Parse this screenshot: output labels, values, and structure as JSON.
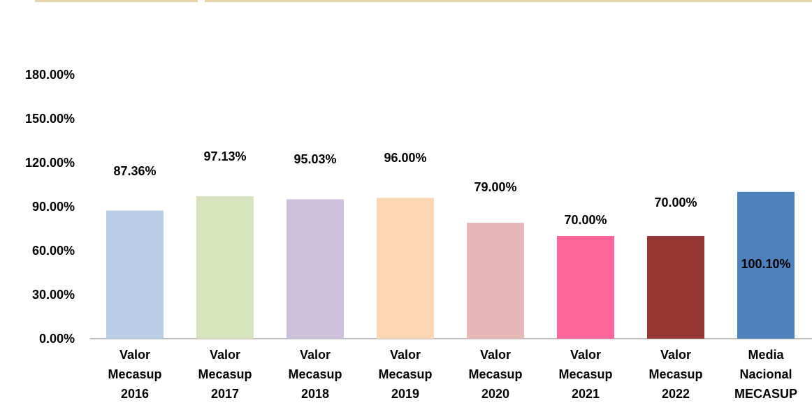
{
  "chart_data": {
    "type": "bar",
    "categories": [
      "Valor Mecasup 2016",
      "Valor Mecasup 2017",
      "Valor Mecasup 2018",
      "Valor Mecasup 2019",
      "Valor Mecasup 2020",
      "Valor Mecasup 2021",
      "Valor Mecasup 2022",
      "Media Nacional MECASUP"
    ],
    "values": [
      87.36,
      97.13,
      95.03,
      96.0,
      79.0,
      70.0,
      70.0,
      100.1
    ],
    "value_labels": [
      "87.36%",
      "97.13%",
      "95.03%",
      "96.00%",
      "79.00%",
      "70.00%",
      "70.00%",
      "100.10%"
    ],
    "colors": [
      "#b9cde5",
      "#d7e4bd",
      "#ccc1da",
      "#fcd5b5",
      "#e6b9b8",
      "#ff6699",
      "#953735",
      "#4f81bd"
    ],
    "ylim": [
      0,
      180
    ],
    "yticks": [
      {
        "value": 0,
        "label": "0.00%"
      },
      {
        "value": 30,
        "label": "30.00%"
      },
      {
        "value": 60,
        "label": "60.00%"
      },
      {
        "value": 90,
        "label": "90.00%"
      },
      {
        "value": 120,
        "label": "120.00%"
      },
      {
        "value": 150,
        "label": "150.00%"
      },
      {
        "value": 180,
        "label": "180.00%"
      }
    ],
    "grid": false
  }
}
